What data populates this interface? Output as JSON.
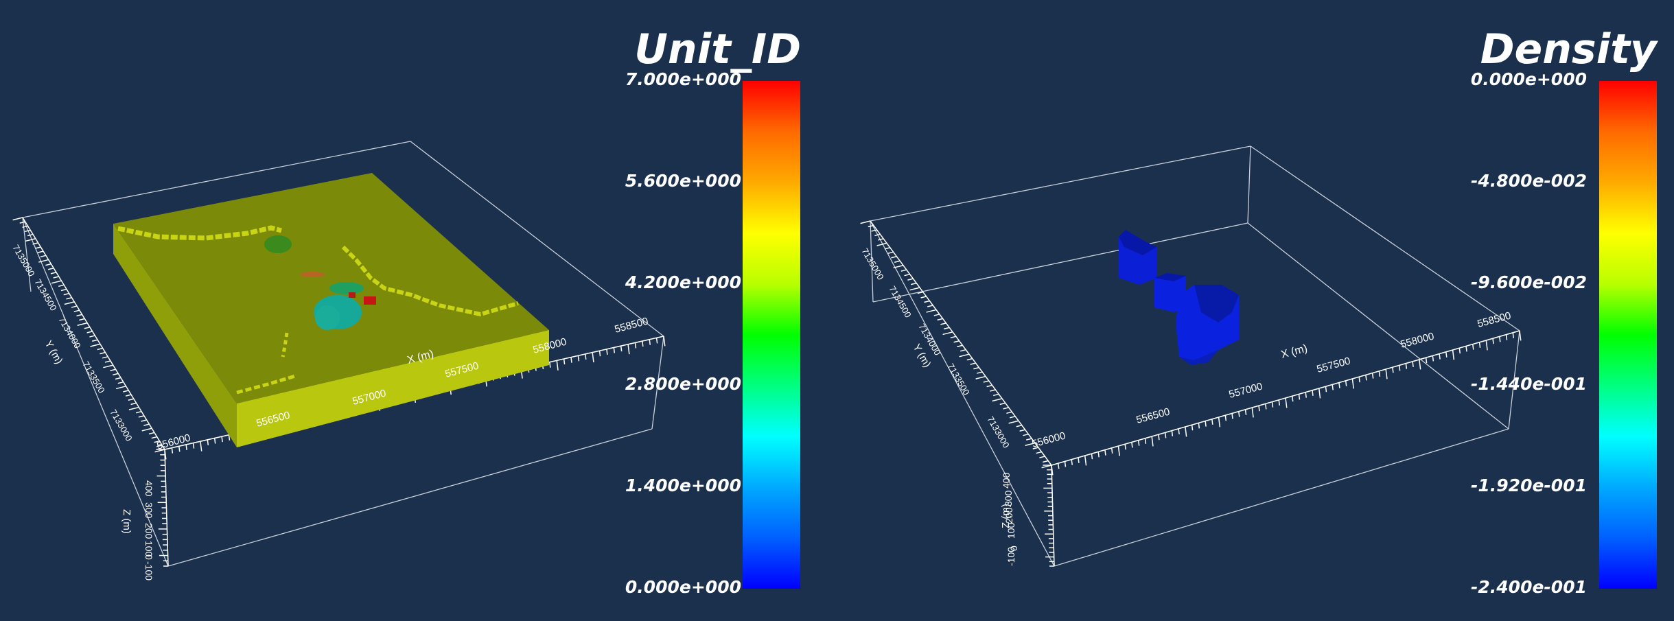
{
  "panels": [
    {
      "colorbar": {
        "title": "Unit_ID",
        "labels": [
          "7.000e+000",
          "5.600e+000",
          "4.200e+000",
          "2.800e+000",
          "1.400e+000",
          "0.000e+000"
        ]
      },
      "axes": {
        "x_label": "X (m)",
        "x_ticks": [
          "556000",
          "556500",
          "557000",
          "557500",
          "558000",
          "558500"
        ],
        "y_label": "Y (m)",
        "y_ticks": [
          "7135000",
          "7134500",
          "7134000",
          "7133500",
          "7133000"
        ],
        "z_label": "Z (m)",
        "z_ticks": [
          "400",
          "300",
          "200",
          "100",
          "0",
          "-100"
        ]
      }
    },
    {
      "colorbar": {
        "title": "Density",
        "labels": [
          "0.000e+000",
          "-4.800e-002",
          "-9.600e-002",
          "-1.440e-001",
          "-1.920e-001",
          "-2.400e-001"
        ]
      },
      "axes": {
        "x_label": "X (m)",
        "x_ticks": [
          "556000",
          "556500",
          "557000",
          "557500",
          "558000",
          "558500"
        ],
        "y_label": "Y (m)",
        "y_ticks": [
          "7135000",
          "7134500",
          "7134000",
          "7133500",
          "7133000"
        ],
        "z_label": "Z (m)",
        "z_ticks": [
          "400",
          "300",
          "200",
          "100",
          "0",
          "-100"
        ]
      }
    }
  ],
  "colors": {
    "background": "#1b304d",
    "model_top": "#7c8a0a",
    "model_front": "#b9c80f",
    "model_side": "#8f9f0a",
    "density_anomaly": "#0a1fd6"
  }
}
